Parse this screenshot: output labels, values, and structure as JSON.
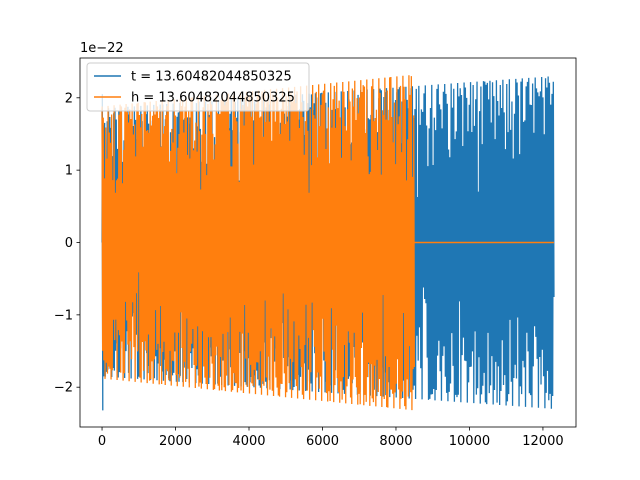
{
  "chart_data": {
    "type": "line",
    "title": "",
    "xlabel": "",
    "ylabel": "",
    "y_offset_text": "1e−22",
    "xlim": [
      -600,
      12900
    ],
    "ylim": [
      -2.55,
      2.55
    ],
    "x_ticks": [
      0,
      2000,
      4000,
      6000,
      8000,
      10000,
      12000
    ],
    "x_tick_labels": [
      "0",
      "2000",
      "4000",
      "6000",
      "8000",
      "10000",
      "12000"
    ],
    "y_ticks": [
      -2,
      -1,
      0,
      1,
      2
    ],
    "y_tick_labels": [
      "−2",
      "−1",
      "0",
      "1",
      "2"
    ],
    "grid": false,
    "legend_position": "top-left",
    "series": [
      {
        "name": "t = 13.60482044850325",
        "color": "#1f77b4",
        "x_range": [
          0,
          12300
        ],
        "description": "rapid oscillation, amplitude envelope grows",
        "envelope_start": 1.85,
        "envelope_end": 2.3,
        "initial_spike": [
          2.05,
          -2.32
        ]
      },
      {
        "name": "h = 13.60482044850325",
        "color": "#ff7f0e",
        "x_range": [
          0,
          8500
        ],
        "description": "rapid oscillation until ~8500, then flat at 0 to 12300",
        "envelope_start": 1.88,
        "envelope_end": 2.32,
        "flat_after": [
          8500,
          12300
        ],
        "flat_value": 0
      }
    ]
  }
}
